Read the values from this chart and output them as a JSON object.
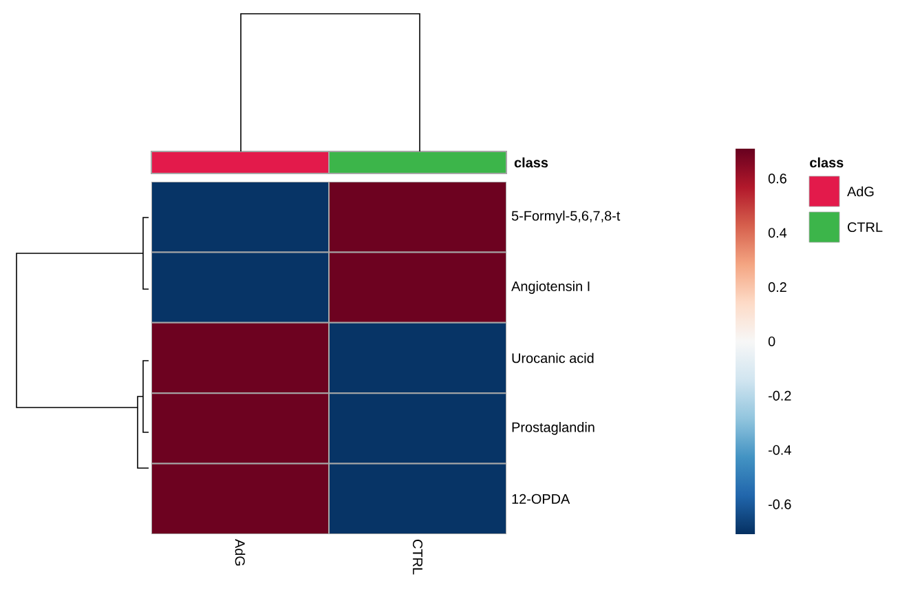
{
  "chart_data": {
    "type": "heatmap",
    "categories": [
      "AdG",
      "CTRL"
    ],
    "y_categories": [
      "5-Formyl-5,6,7,8-t",
      "Angiotensin I",
      "Urocanic acid",
      "Prostaglandin",
      "12-OPDA"
    ],
    "cells": [
      [
        -0.7,
        0.7
      ],
      [
        -0.7,
        0.7
      ],
      [
        0.7,
        -0.7
      ],
      [
        0.7,
        -0.7
      ],
      [
        0.7,
        -0.7
      ]
    ],
    "clim": [
      -0.71,
      0.71
    ],
    "cticks": [
      -0.6,
      -0.4,
      -0.2,
      0,
      0.2,
      0.4,
      0.6
    ],
    "colors": [
      "#e31a4b",
      "#3cb54a"
    ],
    "legend_title": "class",
    "annotations": [
      "class"
    ]
  }
}
